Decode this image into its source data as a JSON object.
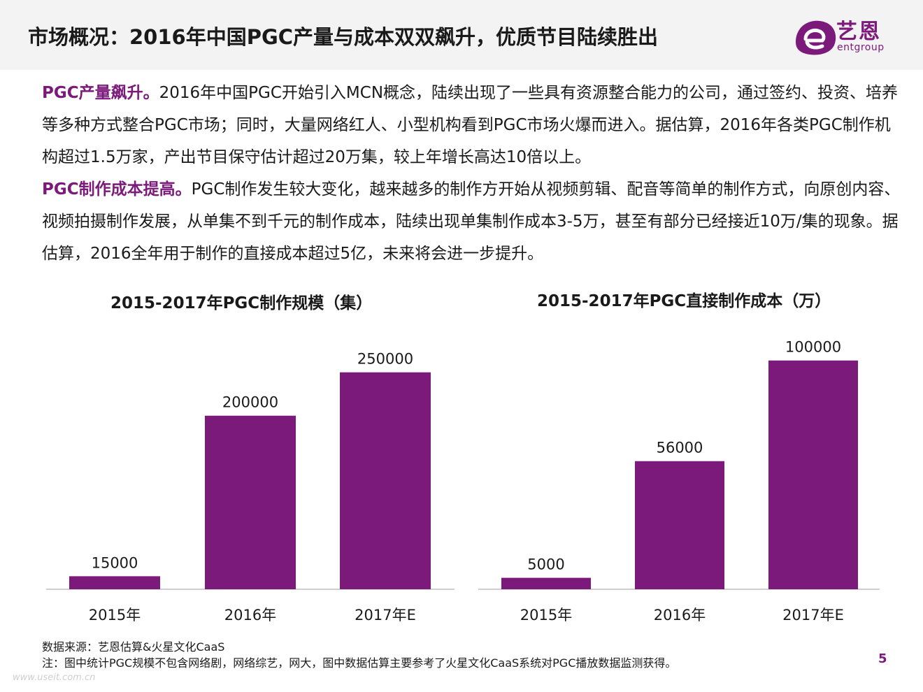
{
  "title": "市场概况：2016年中国PGC产量与成本双双飙升，优质节目陆续胜出",
  "brand": {
    "name": "艺恩",
    "sub": "entgroup",
    "color": "#7b1a7a"
  },
  "paragraphs": [
    {
      "highlight": "PGC产量飙升。",
      "text": "2016年中国PGC开始引入MCN概念，陆续出现了一些具有资源整合能力的公司，通过签约、投资、培养等多种方式整合PGC市场；同时，大量网络红人、小型机构看到PGC市场火爆而进入。据估算，2016年各类PGC制作机构超过1.5万家，产出节目保守估计超过20万集，较上年增长高达10倍以上。"
    },
    {
      "highlight": "PGC制作成本提高。",
      "text": "PGC制作发生较大变化，越来越多的制作方开始从视频剪辑、配音等简单的制作方式，向原创内容、视频拍摄制作发展，从单集不到千元的制作成本，陆续出现单集制作成本3-5万，甚至有部分已经接近10万/集的现象。据估算，2016全年用于制作的直接成本超过5亿，未来将会进一步提升。"
    }
  ],
  "chart_data": [
    {
      "type": "bar",
      "title": "2015-2017年PGC制作规模（集）",
      "categories": [
        "2015年",
        "2016年",
        "2017年E"
      ],
      "values": [
        15000,
        200000,
        250000
      ],
      "ylim": [
        0,
        290000
      ],
      "color": "#7b1a7a",
      "xlabel": "",
      "ylabel": ""
    },
    {
      "type": "bar",
      "title": "2015-2017年PGC直接制作成本（万）",
      "categories": [
        "2015年",
        "2016年",
        "2017年E"
      ],
      "values": [
        5000,
        56000,
        100000
      ],
      "ylim": [
        0,
        110000
      ],
      "color": "#7b1a7a",
      "xlabel": "",
      "ylabel": ""
    }
  ],
  "footer": {
    "source": "数据来源：艺恩估算&火星文化CaaS",
    "note": "注：图中统计PGC规模不包含网络剧，网络综艺，网大，图中数据估算主要参考了火星文化CaaS系统对PGC播放数据监测获得。",
    "page": "5",
    "watermark": "www.useit.com.cn"
  }
}
